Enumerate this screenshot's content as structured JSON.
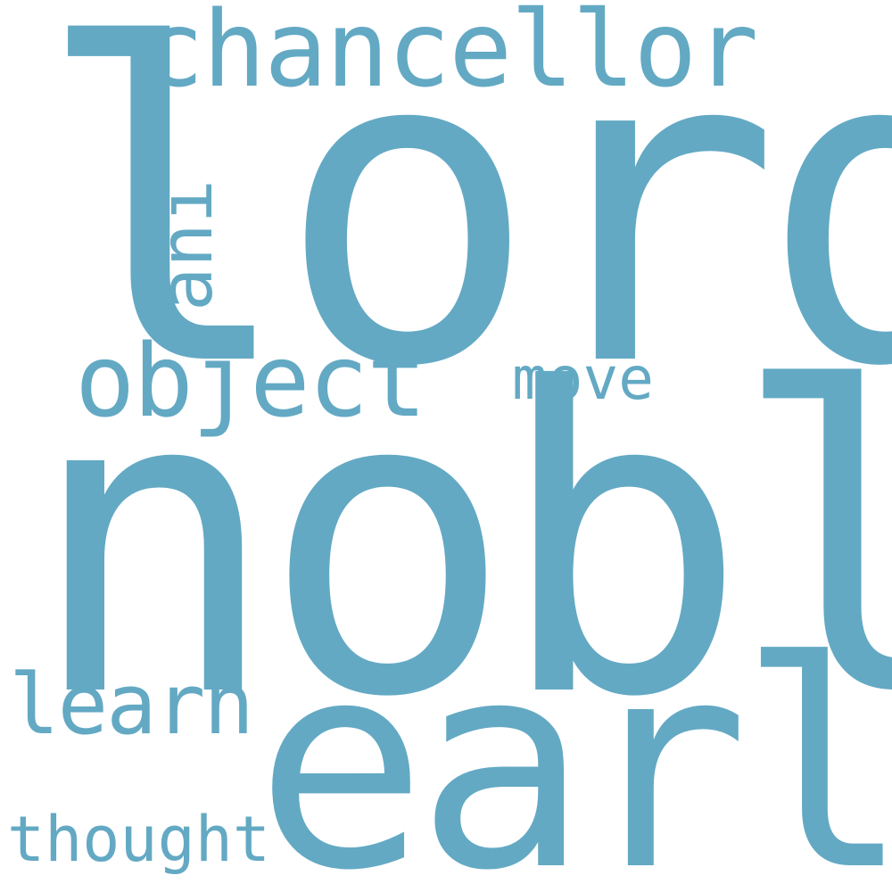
{
  "word_cloud": {
    "color": "#63a9c4",
    "background": "#ffffff",
    "words": {
      "lord": "lord",
      "nobl": "nobl",
      "earl": "earl",
      "chancellor": "chancellor",
      "object": "object",
      "move": "move",
      "learn": "learn",
      "thought": "thought",
      "ani": "ani"
    }
  }
}
